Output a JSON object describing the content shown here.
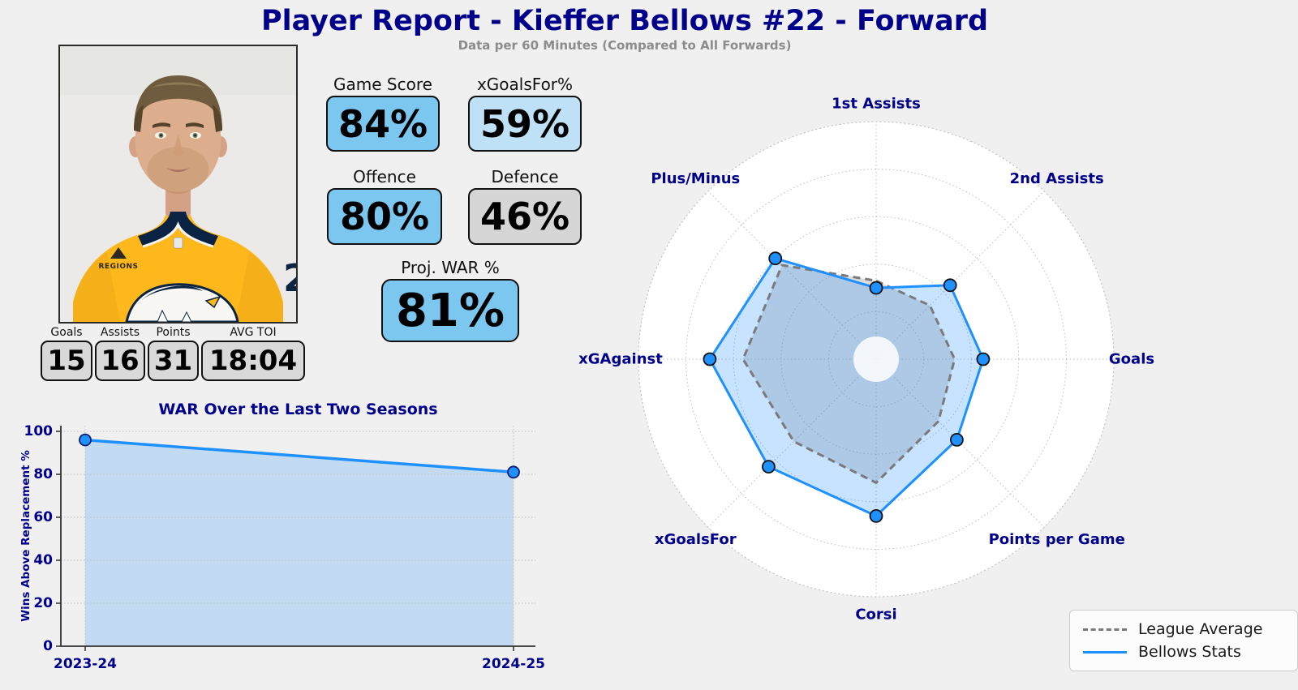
{
  "colors": {
    "background": "#F0F0F0",
    "navy": "#00008B",
    "subtitle_gray": "#8C8C8C",
    "accent_blue": "#1E90FF",
    "league_gray": "#7A7A7A",
    "badge_blue": "#7CC7F0",
    "badge_lightblue": "#BEE1F6",
    "badge_gray": "#D6D6D6",
    "mini_box_gray": "#D9D9D9"
  },
  "header": {
    "title": "Player Report - Kieffer Bellows #22 - Forward",
    "subtitle": "Data per 60 Minutes (Compared to All Forwards)"
  },
  "player_photo": {
    "jersey_patch_text": "REGIONS",
    "jersey_number_glimpse": "2"
  },
  "badges": [
    {
      "label": "Game Score",
      "value": "84%",
      "color": "#7CC7F0"
    },
    {
      "label": "xGoalsFor%",
      "value": "59%",
      "color": "#BEE1F6"
    },
    {
      "label": "Offence",
      "value": "80%",
      "color": "#7CC7F0"
    },
    {
      "label": "Defence",
      "value": "46%",
      "color": "#D6D6D6"
    },
    {
      "label": "Proj. WAR %",
      "value": "81%",
      "color": "#7CC7F0"
    }
  ],
  "season_stats": [
    {
      "label": "Goals",
      "value": "15"
    },
    {
      "label": "Assists",
      "value": "16"
    },
    {
      "label": "Points",
      "value": "31"
    },
    {
      "label": "AVG TOI",
      "value": "18:04"
    }
  ],
  "chart_data": [
    {
      "type": "line",
      "title": "WAR Over the Last Two Seasons",
      "xlabel": "",
      "ylabel": "Wins Above Replacement %",
      "x": [
        "2023-24",
        "2024-25"
      ],
      "values": [
        96,
        81
      ],
      "ylim": [
        0,
        100
      ],
      "yticks": [
        0,
        20,
        40,
        60,
        80,
        100
      ],
      "grid": true,
      "line_color": "#1E90FF",
      "fill_color": "rgba(30,144,255,0.22)",
      "marker_edge": "#0A1E6E"
    },
    {
      "type": "radar",
      "categories": [
        "1st Assists",
        "2nd Assists",
        "Goals",
        "Points per Game",
        "Corsi",
        "xGoalsFor",
        "xGAgainst",
        "Plus/Minus"
      ],
      "rmax": 100,
      "rings": [
        20,
        40,
        60,
        80,
        100
      ],
      "legend_position": "lower right",
      "series": [
        {
          "name": "League Average",
          "values": [
            33,
            32,
            33,
            37,
            52,
            49,
            56,
            56
          ],
          "color": "#7A7A7A",
          "fill": "rgba(128,128,128,0.28)",
          "style": "dashed",
          "markers": false
        },
        {
          "name": "Bellows Stats",
          "values": [
            30,
            44,
            45,
            48,
            66,
            64,
            70,
            60
          ],
          "color": "#1E90FF",
          "fill": "rgba(30,144,255,0.25)",
          "style": "solid",
          "markers": true
        }
      ]
    }
  ]
}
